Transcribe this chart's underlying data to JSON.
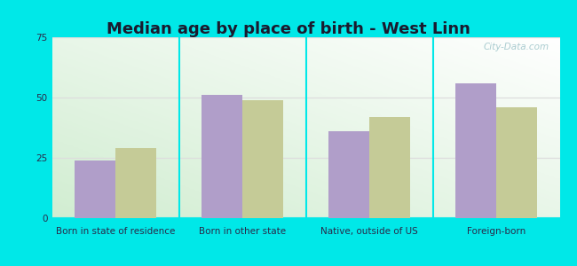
{
  "title": "Median age by place of birth - West Linn",
  "categories": [
    "Born in state of residence",
    "Born in other state",
    "Native, outside of US",
    "Foreign-born"
  ],
  "west_linn_values": [
    24,
    51,
    36,
    56
  ],
  "oregon_values": [
    29,
    49,
    42,
    46
  ],
  "west_linn_color": "#b09ec9",
  "oregon_color": "#c5cb97",
  "background_outer": "#00e8e8",
  "ylim": [
    0,
    75
  ],
  "yticks": [
    0,
    25,
    50,
    75
  ],
  "bar_width": 0.32,
  "title_fontsize": 13,
  "tick_fontsize": 7.5,
  "legend_fontsize": 9,
  "title_color": "#1a1a2e",
  "tick_label_color": "#2a2a4a",
  "watermark_color": "#aaccd0",
  "sep_color": "#00e8e8",
  "grid_color": "#dddddd"
}
